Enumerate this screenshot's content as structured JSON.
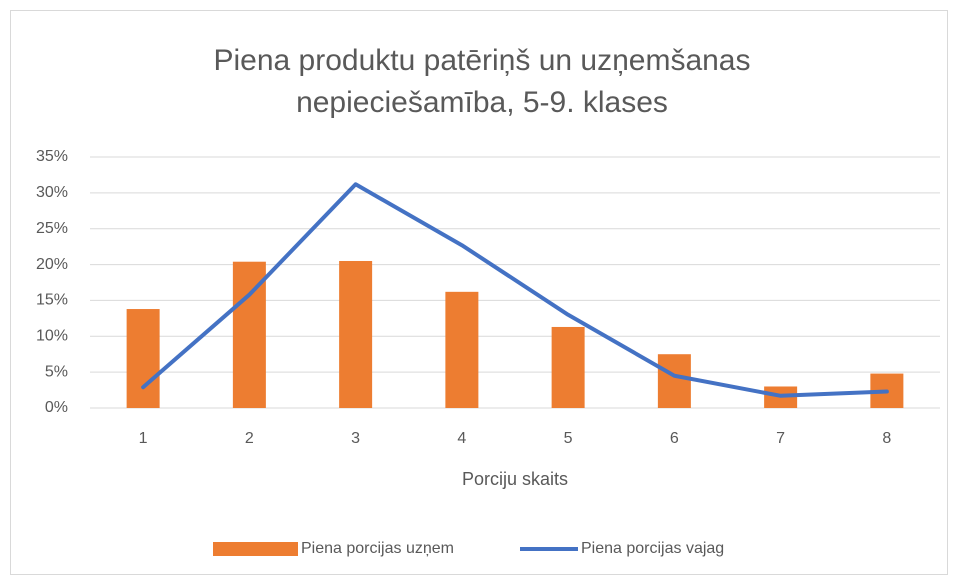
{
  "chart_data": {
    "type": "bar-line",
    "title": [
      "Piena produktu patēriņš un uzņemšanas",
      "nepieciešamība, 5-9. klases"
    ],
    "xlabel": "Porciju skaits",
    "categories": [
      "1",
      "2",
      "3",
      "4",
      "5",
      "6",
      "7",
      "8"
    ],
    "series": [
      {
        "name": "Piena porcijas uzņem",
        "type": "bar",
        "color": "#ED7D31",
        "values": [
          13.8,
          20.4,
          20.5,
          16.2,
          11.3,
          7.5,
          3.0,
          4.8
        ]
      },
      {
        "name": "Piena porcijas vajag",
        "type": "line",
        "color": "#4472C4",
        "values": [
          2.9,
          15.8,
          31.2,
          22.7,
          13.0,
          4.5,
          1.7,
          2.3
        ]
      }
    ],
    "ylim": [
      0,
      35
    ],
    "yticks": [
      {
        "value": 0,
        "label": "0%"
      },
      {
        "value": 5,
        "label": "5%"
      },
      {
        "value": 10,
        "label": "10%"
      },
      {
        "value": 15,
        "label": "15%"
      },
      {
        "value": 20,
        "label": "20%"
      },
      {
        "value": 25,
        "label": "25%"
      },
      {
        "value": 30,
        "label": "30%"
      },
      {
        "value": 35,
        "label": "35%"
      }
    ],
    "grid": true,
    "legend": "bottom"
  }
}
